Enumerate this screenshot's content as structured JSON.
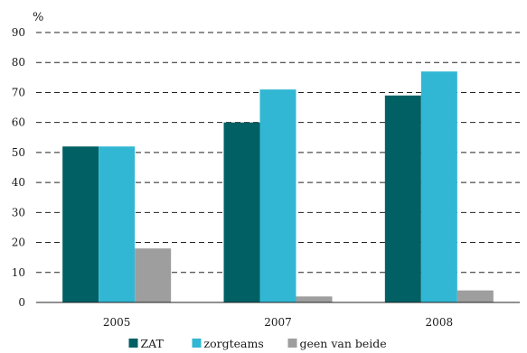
{
  "chart_data": {
    "type": "bar",
    "ylabel": "%",
    "categories": [
      "2005",
      "2007",
      "2008"
    ],
    "series": [
      {
        "name": "ZAT",
        "values": [
          52,
          60,
          69
        ],
        "color": "#006064"
      },
      {
        "name": "zorgteams",
        "values": [
          52,
          71,
          77
        ],
        "color": "#31b7d3"
      },
      {
        "name": "geen van beide",
        "values": [
          18,
          2,
          4
        ],
        "color": "#9e9e9e"
      }
    ],
    "ylim": [
      0,
      90
    ],
    "yticks": [
      0,
      10,
      20,
      30,
      40,
      50,
      60,
      70,
      80,
      90
    ],
    "grid": "dashed horizontal",
    "legend_position": "bottom-center"
  }
}
